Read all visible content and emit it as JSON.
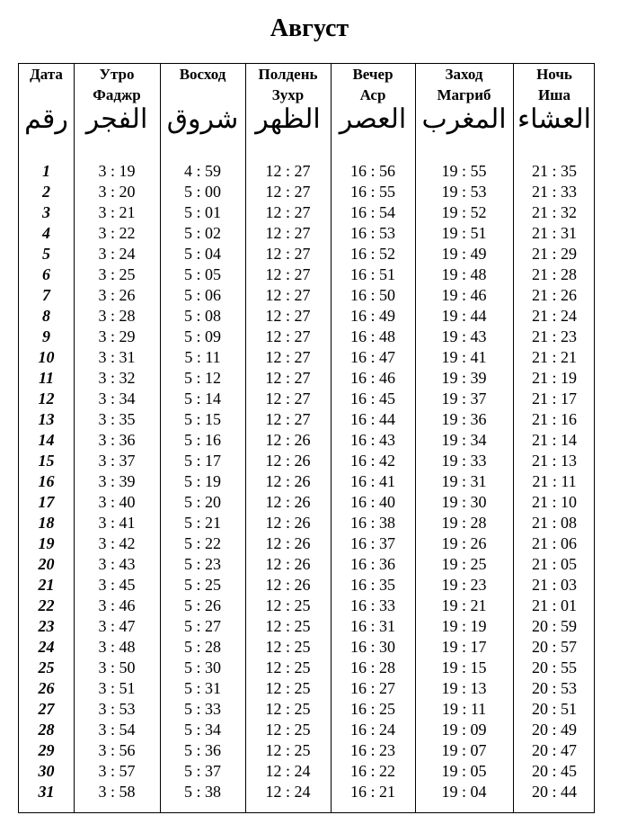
{
  "title": "Август",
  "columns": [
    {
      "ru": "Дата",
      "ar": "رقم"
    },
    {
      "ru": "Утро\nФаджр",
      "ar": "الفجر"
    },
    {
      "ru": "Восход",
      "ar": "شروق"
    },
    {
      "ru": "Полдень\nЗухр",
      "ar": "الظهر"
    },
    {
      "ru": "Вечер\nАср",
      "ar": "العصر"
    },
    {
      "ru": "Заход\nМагриб",
      "ar": "المغرب"
    },
    {
      "ru": "Ночь\nИша",
      "ar": "العشاء"
    }
  ],
  "rows": [
    [
      "1",
      "3 : 19",
      "4 : 59",
      "12 : 27",
      "16 : 56",
      "19 : 55",
      "21 : 35"
    ],
    [
      "2",
      "3 : 20",
      "5 : 00",
      "12 : 27",
      "16 : 55",
      "19 : 53",
      "21 : 33"
    ],
    [
      "3",
      "3 : 21",
      "5 : 01",
      "12 : 27",
      "16 : 54",
      "19 : 52",
      "21 : 32"
    ],
    [
      "4",
      "3 : 22",
      "5 : 02",
      "12 : 27",
      "16 : 53",
      "19 : 51",
      "21 : 31"
    ],
    [
      "5",
      "3 : 24",
      "5 : 04",
      "12 : 27",
      "16 : 52",
      "19 : 49",
      "21 : 29"
    ],
    [
      "6",
      "3 : 25",
      "5 : 05",
      "12 : 27",
      "16 : 51",
      "19 : 48",
      "21 : 28"
    ],
    [
      "7",
      "3 : 26",
      "5 : 06",
      "12 : 27",
      "16 : 50",
      "19 : 46",
      "21 : 26"
    ],
    [
      "8",
      "3 : 28",
      "5 : 08",
      "12 : 27",
      "16 : 49",
      "19 : 44",
      "21 : 24"
    ],
    [
      "9",
      "3 : 29",
      "5 : 09",
      "12 : 27",
      "16 : 48",
      "19 : 43",
      "21 : 23"
    ],
    [
      "10",
      "3 : 31",
      "5 : 11",
      "12 : 27",
      "16 : 47",
      "19 : 41",
      "21 : 21"
    ],
    [
      "11",
      "3 : 32",
      "5 : 12",
      "12 : 27",
      "16 : 46",
      "19 : 39",
      "21 : 19"
    ],
    [
      "12",
      "3 : 34",
      "5 : 14",
      "12 : 27",
      "16 : 45",
      "19 : 37",
      "21 : 17"
    ],
    [
      "13",
      "3 : 35",
      "5 : 15",
      "12 : 27",
      "16 : 44",
      "19 : 36",
      "21 : 16"
    ],
    [
      "14",
      "3 : 36",
      "5 : 16",
      "12 : 26",
      "16 : 43",
      "19 : 34",
      "21 : 14"
    ],
    [
      "15",
      "3 : 37",
      "5 : 17",
      "12 : 26",
      "16 : 42",
      "19 : 33",
      "21 : 13"
    ],
    [
      "16",
      "3 : 39",
      "5 : 19",
      "12 : 26",
      "16 : 41",
      "19 : 31",
      "21 : 11"
    ],
    [
      "17",
      "3 : 40",
      "5 : 20",
      "12 : 26",
      "16 : 40",
      "19 : 30",
      "21 : 10"
    ],
    [
      "18",
      "3 : 41",
      "5 : 21",
      "12 : 26",
      "16 : 38",
      "19 : 28",
      "21 : 08"
    ],
    [
      "19",
      "3 : 42",
      "5 : 22",
      "12 : 26",
      "16 : 37",
      "19 : 26",
      "21 : 06"
    ],
    [
      "20",
      "3 : 43",
      "5 : 23",
      "12 : 26",
      "16 : 36",
      "19 : 25",
      "21 : 05"
    ],
    [
      "21",
      "3 : 45",
      "5 : 25",
      "12 : 26",
      "16 : 35",
      "19 : 23",
      "21 : 03"
    ],
    [
      "22",
      "3 : 46",
      "5 : 26",
      "12 : 25",
      "16 : 33",
      "19 : 21",
      "21 : 01"
    ],
    [
      "23",
      "3 : 47",
      "5 : 27",
      "12 : 25",
      "16 : 31",
      "19 : 19",
      "20 : 59"
    ],
    [
      "24",
      "3 : 48",
      "5 : 28",
      "12 : 25",
      "16 : 30",
      "19 : 17",
      "20 : 57"
    ],
    [
      "25",
      "3 : 50",
      "5 : 30",
      "12 : 25",
      "16 : 28",
      "19 : 15",
      "20 : 55"
    ],
    [
      "26",
      "3 : 51",
      "5 : 31",
      "12 : 25",
      "16 : 27",
      "19 : 13",
      "20 : 53"
    ],
    [
      "27",
      "3 : 53",
      "5 : 33",
      "12 : 25",
      "16 : 25",
      "19 : 11",
      "20 : 51"
    ],
    [
      "28",
      "3 : 54",
      "5 : 34",
      "12 : 25",
      "16 : 24",
      "19 : 09",
      "20 : 49"
    ],
    [
      "29",
      "3 : 56",
      "5 : 36",
      "12 : 25",
      "16 : 23",
      "19 : 07",
      "20 : 47"
    ],
    [
      "30",
      "3 : 57",
      "5 : 37",
      "12 : 24",
      "16 : 22",
      "19 : 05",
      "20 : 45"
    ],
    [
      "31",
      "3 : 58",
      "5 : 38",
      "12 : 24",
      "16 : 21",
      "19 : 04",
      "20 : 44"
    ]
  ]
}
